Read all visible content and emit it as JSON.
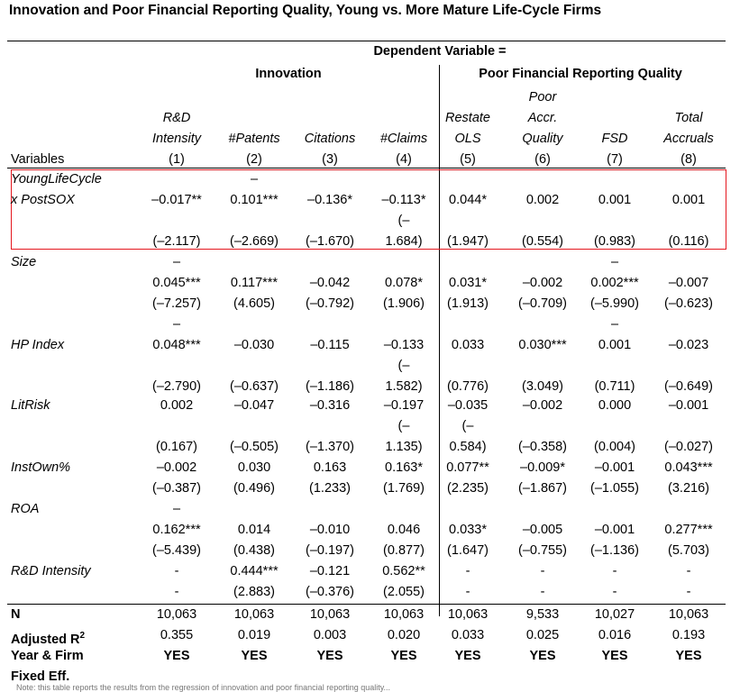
{
  "title": "Innovation and Poor Financial Reporting Quality, Young vs. More Mature Life-Cycle Firms",
  "header": {
    "dependent_variable": "Dependent Variable =",
    "innovation_group": "Innovation",
    "reporting_group": "Poor Financial Reporting Quality",
    "variables_label": "Variables",
    "columns": [
      {
        "lines": [
          "R&D",
          "Intensity",
          "(1)"
        ]
      },
      {
        "lines": [
          "#Patents",
          "(2)"
        ]
      },
      {
        "lines": [
          "Citations",
          "(3)"
        ]
      },
      {
        "lines": [
          "#Claims",
          "(4)"
        ]
      },
      {
        "lines": [
          "Restate",
          "OLS",
          "(5)"
        ]
      },
      {
        "lines": [
          "Poor",
          "Accr.",
          "Quality",
          "(6)"
        ]
      },
      {
        "lines": [
          "FSD",
          "(7)"
        ]
      },
      {
        "lines": [
          "Total",
          "Accruals",
          "(8)"
        ]
      }
    ]
  },
  "rows": {
    "young_label_1": "YoungLifeCycle",
    "young_label_2": "x PostSOX",
    "young_dash_2": "–",
    "young_dash_4": "(–",
    "young_coef": [
      "–0.017**",
      "0.101***",
      "–0.136*",
      "–0.113*",
      "0.044*",
      "0.002",
      "0.001",
      "0.001"
    ],
    "young_t": [
      "(–2.117)",
      "(–2.669)",
      "(–1.670)",
      "1.684)",
      "(1.947)",
      "(0.554)",
      "(0.983)",
      "(0.116)"
    ],
    "size_label": "Size",
    "size_dash_1": "–",
    "size_dash_7": "–",
    "size_coef": [
      "0.045***",
      "0.117***",
      "–0.042",
      "0.078*",
      "0.031*",
      "–0.002",
      "0.002***",
      "–0.007"
    ],
    "size_t": [
      "(–7.257)",
      "(4.605)",
      "(–0.792)",
      "(1.906)",
      "(1.913)",
      "(–0.709)",
      "(–5.990)",
      "(–0.623)"
    ],
    "hp_dash_1": "–",
    "hp_label": "HP Index",
    "hp_dash_7": "–",
    "hp_coef": [
      "0.048***",
      "–0.030",
      "–0.115",
      "–0.133",
      "0.033",
      "0.030***",
      "0.001",
      "–0.023"
    ],
    "hp_dash_4": "(–",
    "hp_t": [
      "(–2.790)",
      "(–0.637)",
      "(–1.186)",
      "1.582)",
      "(0.776)",
      "(3.049)",
      "(0.711)",
      "(–0.649)"
    ],
    "lit_label": "LitRisk",
    "lit_coef": [
      "0.002",
      "–0.047",
      "–0.316",
      "–0.197",
      "–0.035",
      "–0.002",
      "0.000",
      "–0.001"
    ],
    "lit_dash_4": "(–",
    "lit_dash_5": "(–",
    "lit_t": [
      "(0.167)",
      "(–0.505)",
      "(–1.370)",
      "1.135)",
      "0.584)",
      "(–0.358)",
      "(0.004)",
      "(–0.027)"
    ],
    "inst_label": "InstOwn%",
    "inst_coef": [
      "–0.002",
      "0.030",
      "0.163",
      "0.163*",
      "0.077**",
      "–0.009*",
      "–0.001",
      "0.043***"
    ],
    "inst_t": [
      "(–0.387)",
      "(0.496)",
      "(1.233)",
      "(1.769)",
      "(2.235)",
      "(–1.867)",
      "(–1.055)",
      "(3.216)"
    ],
    "roa_label": "ROA",
    "roa_dash_1": "–",
    "roa_coef": [
      "0.162***",
      "0.014",
      "–0.010",
      "0.046",
      "0.033*",
      "–0.005",
      "–0.001",
      "0.277***"
    ],
    "roa_t": [
      "(–5.439)",
      "(0.438)",
      "(–0.197)",
      "(0.877)",
      "(1.647)",
      "(–0.755)",
      "(–1.136)",
      "(5.703)"
    ],
    "rd_label": "R&D Intensity",
    "rd_coef": [
      "-",
      "0.444***",
      "–0.121",
      "0.562**",
      "-",
      "-",
      "-",
      "-"
    ],
    "rd_t": [
      "-",
      "(2.883)",
      "(–0.376)",
      "(2.055)",
      "-",
      "-",
      "-",
      "-"
    ]
  },
  "stats": {
    "n_label": "N",
    "n": [
      "10,063",
      "10,063",
      "10,063",
      "10,063",
      "10,063",
      "9,533",
      "10,027",
      "10,063"
    ],
    "r2_label": "Adjusted R",
    "r2_sup": "2",
    "r2": [
      "0.355",
      "0.019",
      "0.003",
      "0.020",
      "0.033",
      "0.025",
      "0.016",
      "0.193"
    ],
    "fe_label_1": "Year & Firm",
    "fe_label_2": "Fixed Eff.",
    "fe": [
      "YES",
      "YES",
      "YES",
      "YES",
      "YES",
      "YES",
      "YES",
      "YES"
    ]
  },
  "footer": "Note: this table reports the results from the regression of innovation and poor financial reporting quality..."
}
